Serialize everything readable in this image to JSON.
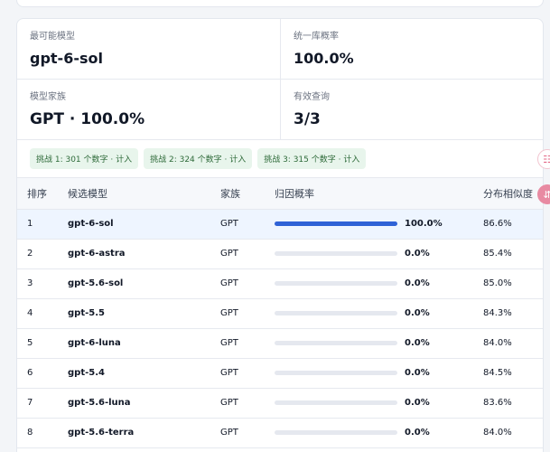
{
  "stats": [
    {
      "label": "最可能模型",
      "value": "gpt-6-sol"
    },
    {
      "label": "统一库概率",
      "value": "100.0%"
    },
    {
      "label": "模型家族",
      "value": "GPT · 100.0%"
    },
    {
      "label": "有效查询",
      "value": "3/3"
    }
  ],
  "challenges": [
    "挑战 1: 301 个数字 · 计入",
    "挑战 2: 324 个数字 · 计入",
    "挑战 3: 315 个数字 · 计入"
  ],
  "table": {
    "headers": {
      "rank": "排序",
      "model": "候选模型",
      "family": "家族",
      "prob": "归因概率",
      "sim": "分布相似度"
    },
    "rows": [
      {
        "rank": "1",
        "model": "gpt-6-sol",
        "family": "GPT",
        "prob": "100.0%",
        "prob_value": 1.0,
        "sim": "86.6%"
      },
      {
        "rank": "2",
        "model": "gpt-6-astra",
        "family": "GPT",
        "prob": "0.0%",
        "prob_value": 0.0,
        "sim": "85.4%"
      },
      {
        "rank": "3",
        "model": "gpt-5.6-sol",
        "family": "GPT",
        "prob": "0.0%",
        "prob_value": 0.0,
        "sim": "85.0%"
      },
      {
        "rank": "4",
        "model": "gpt-5.5",
        "family": "GPT",
        "prob": "0.0%",
        "prob_value": 0.0,
        "sim": "84.3%"
      },
      {
        "rank": "5",
        "model": "gpt-6-luna",
        "family": "GPT",
        "prob": "0.0%",
        "prob_value": 0.0,
        "sim": "84.0%"
      },
      {
        "rank": "6",
        "model": "gpt-5.4",
        "family": "GPT",
        "prob": "0.0%",
        "prob_value": 0.0,
        "sim": "84.5%"
      },
      {
        "rank": "7",
        "model": "gpt-5.6-luna",
        "family": "GPT",
        "prob": "0.0%",
        "prob_value": 0.0,
        "sim": "83.6%"
      },
      {
        "rank": "8",
        "model": "gpt-5.6-terra",
        "family": "GPT",
        "prob": "0.0%",
        "prob_value": 0.0,
        "sim": "84.0%"
      }
    ]
  },
  "side_buttons": {
    "menu_icon": "menu-icon",
    "scroll_icon": "scroll-top-icon"
  },
  "colors": {
    "accent": "#2f62d6",
    "chip_bg": "#e8f5ec",
    "chip_text": "#2f6b3a",
    "highlight_row": "#eef5ff",
    "side_accent": "#e88aa2"
  }
}
